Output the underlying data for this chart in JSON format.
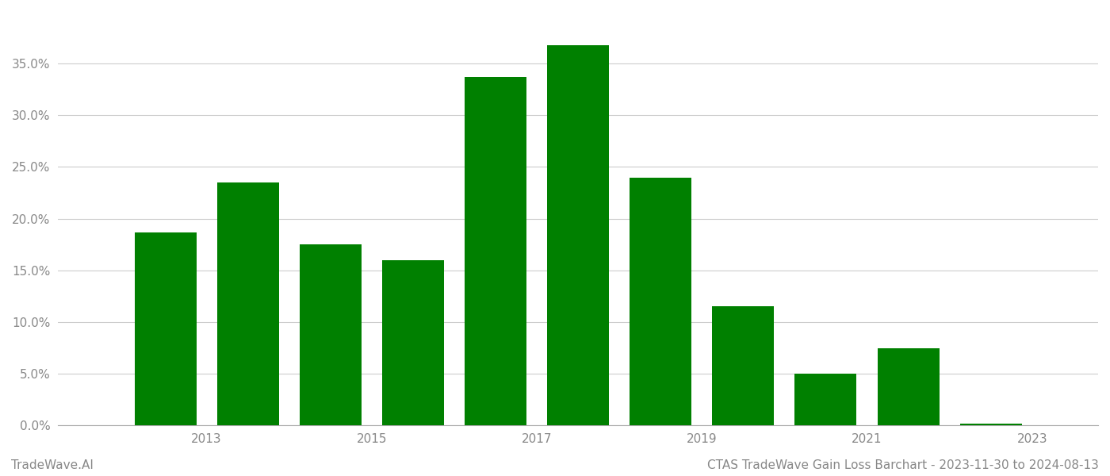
{
  "years": [
    2012,
    2013,
    2014,
    2015,
    2016,
    2017,
    2018,
    2019,
    2020,
    2021,
    2022
  ],
  "values": [
    0.187,
    0.235,
    0.175,
    0.16,
    0.337,
    0.368,
    0.24,
    0.115,
    0.05,
    0.075,
    0.002
  ],
  "bar_color": "#008000",
  "background_color": "#ffffff",
  "grid_color": "#cccccc",
  "ytick_values": [
    0.0,
    0.05,
    0.1,
    0.15,
    0.2,
    0.25,
    0.3,
    0.35
  ],
  "xtick_positions": [
    2013,
    2015,
    2017,
    2019,
    2021,
    2023
  ],
  "xtick_labels": [
    "2013",
    "2015",
    "2017",
    "2019",
    "2021",
    "2023"
  ],
  "xlim": [
    2011.2,
    2023.8
  ],
  "ylim": [
    0,
    0.4
  ],
  "bar_width": 0.75,
  "footer_left": "TradeWave.AI",
  "footer_right": "CTAS TradeWave Gain Loss Barchart - 2023-11-30 to 2024-08-13",
  "footer_color": "#888888",
  "footer_fontsize": 11
}
